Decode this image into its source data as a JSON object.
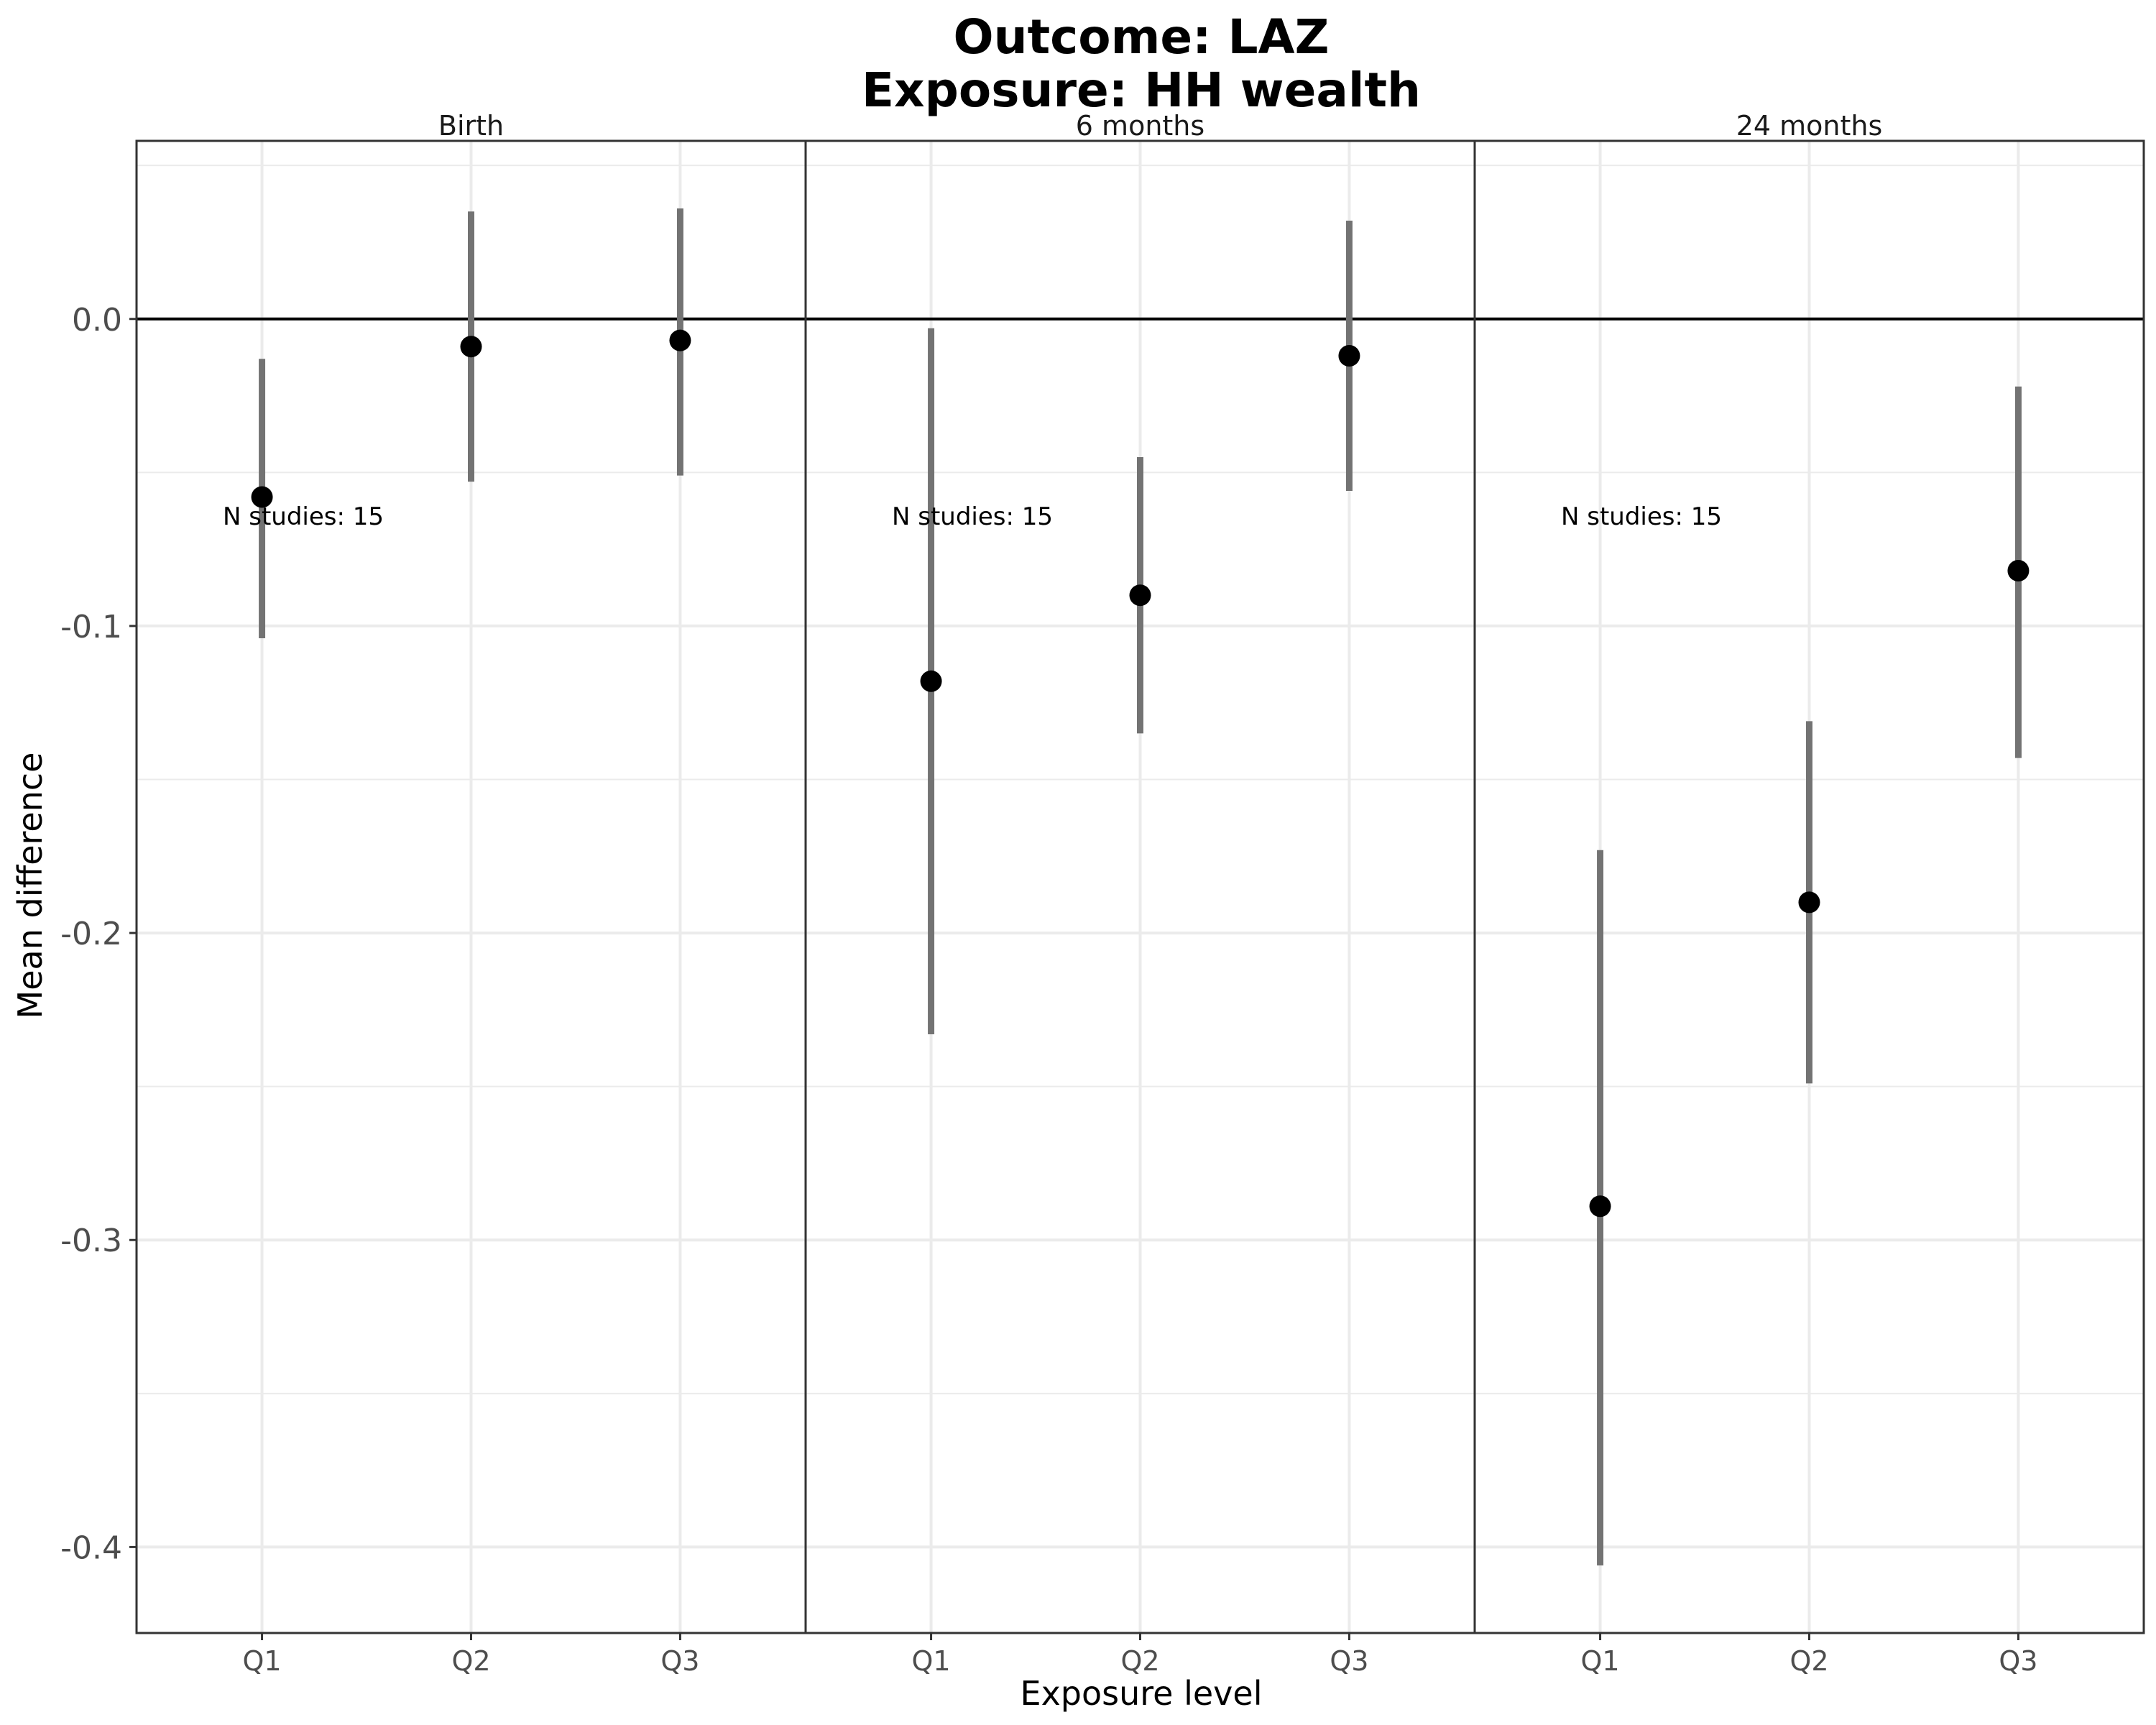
{
  "chart_data": {
    "type": "scatter",
    "title": "Outcome: LAZ",
    "subtitle": "Exposure: HH wealth",
    "xlabel": "Exposure level",
    "ylabel": "Mean difference",
    "ylim": [
      -0.428,
      0.058
    ],
    "yticks": [
      0.0,
      -0.1,
      -0.2,
      -0.3,
      -0.4
    ],
    "ytick_labels": [
      "0.0",
      "-0.1",
      "-0.2",
      "-0.3",
      "-0.4"
    ],
    "categories": [
      "Q1",
      "Q2",
      "Q3"
    ],
    "reference_line": 0,
    "grid": true,
    "legend": "none",
    "colors": {
      "point": "#000000",
      "interval": "#737373",
      "grid": "#ebebeb"
    },
    "panels": [
      {
        "label": "Birth",
        "annotation": "N studies: 15",
        "points": [
          {
            "x": "Q1",
            "y": -0.058,
            "lower": -0.104,
            "upper": -0.013
          },
          {
            "x": "Q2",
            "y": -0.009,
            "lower": -0.053,
            "upper": 0.035
          },
          {
            "x": "Q3",
            "y": -0.007,
            "lower": -0.051,
            "upper": 0.036
          }
        ]
      },
      {
        "label": "6 months",
        "annotation": "N studies: 15",
        "points": [
          {
            "x": "Q1",
            "y": -0.118,
            "lower": -0.233,
            "upper": -0.003
          },
          {
            "x": "Q2",
            "y": -0.09,
            "lower": -0.135,
            "upper": -0.045
          },
          {
            "x": "Q3",
            "y": -0.012,
            "lower": -0.056,
            "upper": 0.032
          }
        ]
      },
      {
        "label": "24 months",
        "annotation": "N studies: 15",
        "points": [
          {
            "x": "Q1",
            "y": -0.289,
            "lower": -0.406,
            "upper": -0.173
          },
          {
            "x": "Q2",
            "y": -0.19,
            "lower": -0.249,
            "upper": -0.131
          },
          {
            "x": "Q3",
            "y": -0.082,
            "lower": -0.143,
            "upper": -0.022
          }
        ]
      }
    ]
  }
}
